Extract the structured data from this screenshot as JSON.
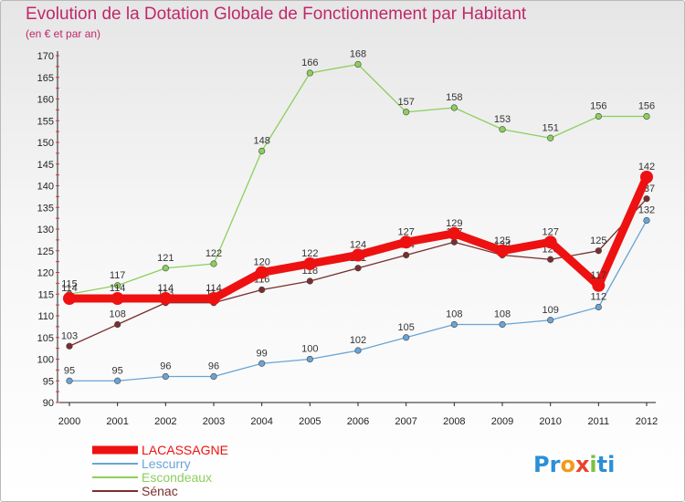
{
  "title": "Evolution de la Dotation Globale de Fonctionnement par Habitant",
  "subtitle": "(en € et par an)",
  "logo": {
    "parts": [
      "Pr",
      "o",
      "x",
      "i",
      "ti"
    ],
    "colors": [
      "#2b8fd6",
      "#f39a1b",
      "#e8452c",
      "#7bc142",
      "#2b8fd6"
    ]
  },
  "chart_data": {
    "type": "line",
    "x": [
      2000,
      2001,
      2002,
      2003,
      2004,
      2005,
      2006,
      2007,
      2008,
      2009,
      2010,
      2011,
      2012
    ],
    "ylim": [
      90,
      170
    ],
    "yticks": [
      90,
      95,
      100,
      105,
      110,
      115,
      120,
      125,
      130,
      135,
      140,
      145,
      150,
      155,
      160,
      165,
      170
    ],
    "grid": false,
    "legend_position": "bottom-left",
    "series": [
      {
        "name": "Sénac",
        "color": "#7a2e2e",
        "values": [
          103,
          108,
          113,
          113,
          116,
          118,
          121,
          124,
          127,
          124,
          123,
          125,
          137
        ]
      },
      {
        "name": "Escondeaux",
        "color": "#8ccf5c",
        "values": [
          115,
          117,
          121,
          122,
          148,
          166,
          168,
          157,
          158,
          153,
          151,
          156,
          156
        ]
      },
      {
        "name": "Lescurry",
        "color": "#6aa4d4",
        "values": [
          95,
          95,
          96,
          96,
          99,
          100,
          102,
          105,
          108,
          108,
          109,
          112,
          132
        ]
      },
      {
        "name": "LACASSAGNE",
        "color": "#ee1111",
        "values": [
          114,
          114,
          114,
          114,
          120,
          122,
          124,
          127,
          129,
          125,
          127,
          117,
          142
        ]
      }
    ]
  }
}
